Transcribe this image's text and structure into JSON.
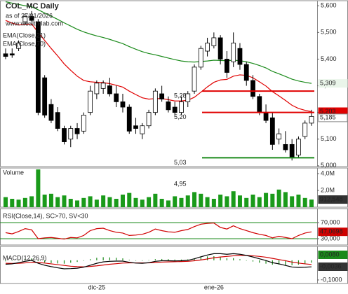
{
  "chart_data": [
    {
      "type": "candlestick",
      "title": "COL_MC Daily",
      "subtitle": "as of 27/01/2026",
      "source": "www.wealth-lab.com",
      "categories": [
        null,
        null,
        null,
        null,
        null,
        null,
        null,
        null,
        null,
        null,
        null,
        null,
        null,
        null,
        "dic-25",
        null,
        null,
        null,
        null,
        null,
        null,
        null,
        null,
        null,
        null,
        null,
        null,
        null,
        null,
        null,
        null,
        null,
        "ene-26",
        null,
        null,
        null,
        null,
        null,
        null,
        null,
        null,
        null,
        null,
        null,
        null,
        null,
        null,
        null
      ],
      "open": [
        5.42,
        5.42,
        5.44,
        5.54,
        5.56,
        5.54,
        5.33,
        5.23,
        5.2,
        5.14,
        5.1,
        5.14,
        5.13,
        5.2,
        5.27,
        5.29,
        5.3,
        5.27,
        5.24,
        5.22,
        5.15,
        5.12,
        5.15,
        5.2,
        5.27,
        5.24,
        5.22,
        5.2,
        5.24,
        5.28,
        5.37,
        5.43,
        5.45,
        5.48,
        5.4,
        5.39,
        5.44,
        5.38,
        5.32,
        5.26,
        5.2,
        5.18,
        5.1,
        5.08,
        5.08,
        5.04,
        5.11,
        5.16
      ],
      "high": [
        5.44,
        5.44,
        5.47,
        5.57,
        5.58,
        5.55,
        5.34,
        5.25,
        5.22,
        5.15,
        5.15,
        5.16,
        5.2,
        5.3,
        5.32,
        5.32,
        5.33,
        5.3,
        5.27,
        5.23,
        5.18,
        5.16,
        5.21,
        5.29,
        5.3,
        5.26,
        5.24,
        5.26,
        5.28,
        5.38,
        5.45,
        5.48,
        5.5,
        5.49,
        5.43,
        5.5,
        5.46,
        5.39,
        5.34,
        5.27,
        5.23,
        5.2,
        5.14,
        5.13,
        5.1,
        5.11,
        5.17,
        5.21
      ],
      "low": [
        5.4,
        5.405,
        5.43,
        5.53,
        5.54,
        5.19,
        5.18,
        5.16,
        5.13,
        5.08,
        5.07,
        5.1,
        5.12,
        5.19,
        5.25,
        5.27,
        5.26,
        5.22,
        5.2,
        5.12,
        5.12,
        5.1,
        5.14,
        5.19,
        5.24,
        5.2,
        5.19,
        5.19,
        5.22,
        5.27,
        5.36,
        5.41,
        5.44,
        5.38,
        5.33,
        5.37,
        5.36,
        5.3,
        5.25,
        5.19,
        5.16,
        5.06,
        5.08,
        5.05,
        5.02,
        5.03,
        5.1,
        5.15
      ],
      "close": [
        5.41,
        5.415,
        5.46,
        5.56,
        5.545,
        5.2,
        5.19,
        5.17,
        5.14,
        5.09,
        5.14,
        5.12,
        5.19,
        5.28,
        5.31,
        5.31,
        5.27,
        5.24,
        5.22,
        5.13,
        5.14,
        5.15,
        5.2,
        5.28,
        5.25,
        5.21,
        5.2,
        5.24,
        5.27,
        5.37,
        5.44,
        5.46,
        5.48,
        5.4,
        5.35,
        5.46,
        5.38,
        5.32,
        5.26,
        5.2,
        5.17,
        5.08,
        5.12,
        5.06,
        5.03,
        5.1,
        5.16,
        5.185
      ],
      "up_color": "#ffffff",
      "down_color": "#000000",
      "close_label": "5,185",
      "series": [
        {
          "name": "EMA(Close,21)",
          "color": "#e00000",
          "last_label": "5,203",
          "values": [
            5.545,
            5.535,
            5.528,
            5.53,
            5.532,
            5.5,
            5.47,
            5.44,
            5.412,
            5.382,
            5.358,
            5.336,
            5.32,
            5.315,
            5.313,
            5.312,
            5.308,
            5.302,
            5.295,
            5.28,
            5.267,
            5.255,
            5.25,
            5.252,
            5.252,
            5.248,
            5.243,
            5.243,
            5.246,
            5.257,
            5.276,
            5.296,
            5.313,
            5.322,
            5.324,
            5.336,
            5.341,
            5.339,
            5.33,
            5.315,
            5.299,
            5.278,
            5.262,
            5.245,
            5.227,
            5.215,
            5.208,
            5.203
          ]
        },
        {
          "name": "EMA(Close,70)",
          "color": "#1a8a1a",
          "last_label": "5,309",
          "values": [
            5.615,
            5.61,
            5.605,
            5.6,
            5.596,
            5.585,
            5.573,
            5.561,
            5.549,
            5.536,
            5.524,
            5.512,
            5.502,
            5.494,
            5.487,
            5.481,
            5.474,
            5.466,
            5.458,
            5.447,
            5.437,
            5.428,
            5.421,
            5.416,
            5.41,
            5.404,
            5.398,
            5.393,
            5.39,
            5.389,
            5.391,
            5.393,
            5.396,
            5.395,
            5.394,
            5.396,
            5.394,
            5.39,
            5.384,
            5.376,
            5.367,
            5.354,
            5.345,
            5.335,
            5.325,
            5.318,
            5.313,
            5.309
          ]
        }
      ],
      "levels": [
        {
          "value": 5.28,
          "label": "5,28",
          "color": "#e00000"
        },
        {
          "value": 5.2,
          "label": "5,20",
          "color": "#e00000"
        },
        {
          "value": 5.03,
          "label": "5,03",
          "color": "#1a8a1a"
        },
        {
          "value": 4.95,
          "label": "4,95",
          "color": "#1a8a1a"
        }
      ],
      "ylim": [
        4.997,
        5.619
      ],
      "yticks": [
        {
          "value": 5.6,
          "label": "5,600"
        },
        {
          "value": 5.5,
          "label": "5,500"
        },
        {
          "value": 5.4,
          "label": "5,400"
        },
        {
          "value": 5.3,
          "label": "5,300"
        },
        {
          "value": 5.2,
          "label": "5,200"
        },
        {
          "value": 5.1,
          "label": "5,100"
        },
        {
          "value": 5.0,
          "label": "5,000"
        }
      ]
    },
    {
      "type": "bar",
      "title": "Volume",
      "color": "#1a9a1a",
      "last_label": "912,548",
      "values": [
        1.2,
        1.0,
        0.9,
        1.1,
        1.3,
        4.5,
        1.5,
        1.6,
        1.2,
        1.4,
        1.0,
        0.8,
        1.1,
        1.3,
        0.9,
        1.4,
        1.2,
        1.0,
        1.5,
        1.7,
        1.1,
        0.9,
        1.2,
        1.6,
        1.0,
        0.8,
        1.3,
        1.1,
        1.4,
        1.8,
        1.6,
        1.2,
        1.0,
        1.5,
        1.3,
        1.9,
        1.4,
        1.1,
        1.5,
        1.2,
        1.7,
        1.6,
        2.1,
        1.8,
        1.3,
        1.5,
        1.1,
        0.912548
      ],
      "ylim": [
        0,
        4.67
      ],
      "yticks": [
        {
          "value": 4,
          "label": "4,0M"
        },
        {
          "value": 2,
          "label": "2,0M"
        }
      ]
    },
    {
      "type": "line",
      "title": "RSI(Close,14), SC>70, SV<30",
      "color": "#d00000",
      "level_color": "#1a8a1a",
      "last_label": "47,0698",
      "values": [
        45,
        42,
        48,
        55,
        52,
        30,
        32,
        33,
        31,
        29,
        33,
        32,
        38,
        50,
        55,
        56,
        50,
        46,
        44,
        38,
        39,
        41,
        46,
        54,
        50,
        47,
        46,
        50,
        53,
        60,
        66,
        68,
        69,
        58,
        54,
        62,
        55,
        50,
        45,
        41,
        38,
        32,
        36,
        33,
        30,
        38,
        44,
        47.0698
      ],
      "ylim": [
        14.3,
        104.8
      ],
      "yticks": [
        {
          "value": 70,
          "label": "70,000"
        },
        {
          "value": 30,
          "label": "30,000"
        }
      ]
    },
    {
      "type": "macd",
      "title": "MACD(12,26,9)",
      "macd": {
        "color": "#000000",
        "values": [
          -0.02,
          -0.018,
          -0.012,
          -0.005,
          0.0,
          -0.015,
          -0.025,
          -0.032,
          -0.038,
          -0.043,
          -0.042,
          -0.04,
          -0.035,
          -0.025,
          -0.015,
          -0.008,
          -0.005,
          -0.004,
          -0.004,
          -0.01,
          -0.014,
          -0.015,
          -0.012,
          -0.005,
          -0.002,
          -0.002,
          -0.003,
          -0.002,
          0.0,
          0.008,
          0.018,
          0.027,
          0.034,
          0.034,
          0.031,
          0.034,
          0.031,
          0.025,
          0.017,
          0.008,
          -0.001,
          -0.012,
          -0.018,
          -0.026,
          -0.034,
          -0.036,
          -0.035,
          -0.033
        ]
      },
      "signal": {
        "color": "#d00000",
        "values": [
          -0.015,
          -0.016,
          -0.015,
          -0.013,
          -0.01,
          -0.011,
          -0.014,
          -0.018,
          -0.022,
          -0.026,
          -0.03,
          -0.032,
          -0.033,
          -0.031,
          -0.028,
          -0.024,
          -0.02,
          -0.017,
          -0.014,
          -0.013,
          -0.013,
          -0.013,
          -0.013,
          -0.011,
          -0.009,
          -0.008,
          -0.007,
          -0.006,
          -0.005,
          -0.002,
          0.002,
          0.007,
          0.013,
          0.017,
          0.02,
          0.023,
          0.025,
          0.025,
          0.023,
          0.02,
          0.016,
          0.01,
          0.004,
          -0.002,
          -0.009,
          -0.014,
          -0.018,
          -0.021
        ]
      },
      "histogram": {
        "color": "#1a8a1a",
        "values": [
          -0.005,
          -0.002,
          0.003,
          0.008,
          0.01,
          -0.004,
          -0.011,
          -0.014,
          -0.016,
          -0.017,
          -0.012,
          -0.008,
          -0.002,
          0.006,
          0.013,
          0.016,
          0.015,
          0.013,
          0.01,
          0.003,
          -0.001,
          -0.002,
          0.001,
          0.006,
          0.007,
          0.006,
          0.004,
          0.004,
          0.005,
          0.01,
          0.016,
          0.02,
          0.021,
          0.017,
          0.011,
          0.011,
          0.006,
          0.0,
          -0.006,
          -0.012,
          -0.017,
          -0.022,
          -0.022,
          -0.024,
          -0.025,
          -0.022,
          -0.017,
          -0.012
        ]
      },
      "annotations": [
        {
          "text": "0,0080",
          "color": "#1a8a1a"
        },
        {
          "text": "-0,0036",
          "color": "#333333"
        }
      ],
      "ylim": [
        -0.118,
        0.071
      ],
      "yticks": [
        {
          "value": -0.1,
          "label": "-0,1000"
        }
      ]
    }
  ]
}
